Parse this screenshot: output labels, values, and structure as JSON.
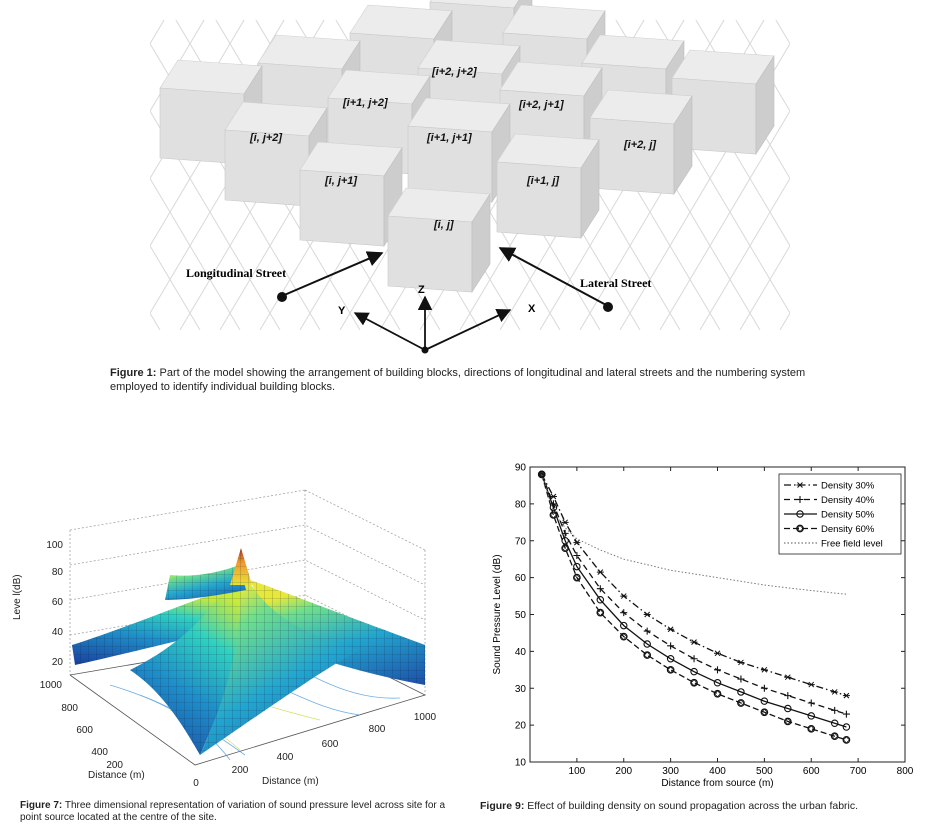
{
  "figure1": {
    "blocks": [
      {
        "label": "[i, j]"
      },
      {
        "label": "[i+1, j]"
      },
      {
        "label": "[i, j+1]"
      },
      {
        "label": "[i+1, j+1]"
      },
      {
        "label": "[i+2, j]"
      },
      {
        "label": "[i, j+2]"
      },
      {
        "label": "[i+1, j+2]"
      },
      {
        "label": "[i+2, j+1]"
      },
      {
        "label": "[i+2, j+2]"
      }
    ],
    "longitudinal_label": "Longitudinal Street",
    "lateral_label": "Lateral Street",
    "axis_x": "X",
    "axis_y": "Y",
    "axis_z": "Z",
    "caption_bold": "Figure 1:",
    "caption_text": "Part of the model showing the arrangement of building blocks, directions of longitudinal and lateral streets and the numbering system employed to identify individual building blocks."
  },
  "figure7": {
    "zlabel": "Leve l(dB)",
    "z_ticks": [
      "20",
      "40",
      "60",
      "80",
      "100"
    ],
    "y_ticks": [
      "1000",
      "800",
      "600",
      "400",
      "200"
    ],
    "x_ticks": [
      "0",
      "200",
      "400",
      "600",
      "800",
      "1000"
    ],
    "ylabel": "Distance (m)",
    "xlabel": "Distance (m)",
    "caption_bold": "Figure 7:",
    "caption_text": "Three dimensional representation of variation of sound pressure level across site for a point source located at the centre of the site."
  },
  "figure9": {
    "caption_bold": "Figure 9:",
    "caption_text": "Effect of building density on sound propagation across the urban fabric."
  },
  "chart_data": {
    "type": "line",
    "title": "",
    "xlabel": "Distance from source (m)",
    "ylabel": "Sound Pressure Level (dB)",
    "xlim": [
      0,
      800
    ],
    "ylim": [
      10,
      90
    ],
    "x_ticks": [
      100,
      200,
      300,
      400,
      500,
      600,
      700,
      800
    ],
    "y_ticks": [
      10,
      20,
      30,
      40,
      50,
      60,
      70,
      80,
      90
    ],
    "grid": false,
    "legend_position": "top-right",
    "x": [
      25,
      50,
      75,
      100,
      150,
      200,
      250,
      300,
      350,
      400,
      450,
      500,
      550,
      600,
      650,
      675
    ],
    "series": [
      {
        "name": "Density 30%",
        "values": [
          88,
          82,
          75,
          69.5,
          61.5,
          55,
          50,
          46,
          42.5,
          39.5,
          37,
          35,
          33,
          31,
          29,
          28
        ]
      },
      {
        "name": "Density 40%",
        "values": [
          88,
          80,
          72,
          66,
          57,
          50.5,
          45.5,
          41.5,
          38,
          35,
          32.5,
          30,
          28,
          26,
          24,
          23
        ]
      },
      {
        "name": "Density 50%",
        "values": [
          88,
          79,
          70,
          63,
          54,
          47,
          42,
          38,
          34.5,
          31.5,
          29,
          26.5,
          24.5,
          22.5,
          20.5,
          19.5
        ]
      },
      {
        "name": "Density 60%",
        "values": [
          88,
          77,
          68,
          60,
          50.5,
          44,
          39,
          35,
          31.5,
          28.5,
          26,
          23.5,
          21,
          19,
          17,
          16
        ]
      },
      {
        "name": "Free field level",
        "values": [
          88,
          78,
          73.5,
          70.5,
          67.5,
          65,
          63.5,
          62,
          61,
          60,
          59,
          58,
          57.2,
          56.5,
          55.8,
          55.5
        ]
      }
    ]
  }
}
